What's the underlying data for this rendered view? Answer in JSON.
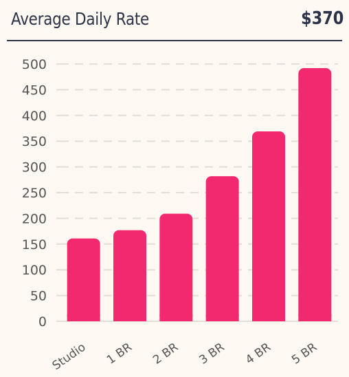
{
  "header": {
    "title": "Average Daily Rate",
    "headline_value": "$370"
  },
  "colors": {
    "bar": "#f2296e",
    "text": "#2b3348",
    "axis_text": "#555555",
    "grid": "#e3ddd3",
    "background": "#fdf8f1"
  },
  "chart_data": {
    "type": "bar",
    "categories": [
      "Studio",
      "1 BR",
      "2 BR",
      "3 BR",
      "4 BR",
      "5 BR"
    ],
    "values": [
      161,
      177,
      209,
      282,
      369,
      492
    ],
    "ylim": [
      0,
      500
    ],
    "yticks": [
      0,
      50,
      100,
      150,
      200,
      250,
      300,
      350,
      400,
      450,
      500
    ],
    "grid": true,
    "grid_style": "dashed",
    "xlabel": "",
    "ylabel": ""
  }
}
